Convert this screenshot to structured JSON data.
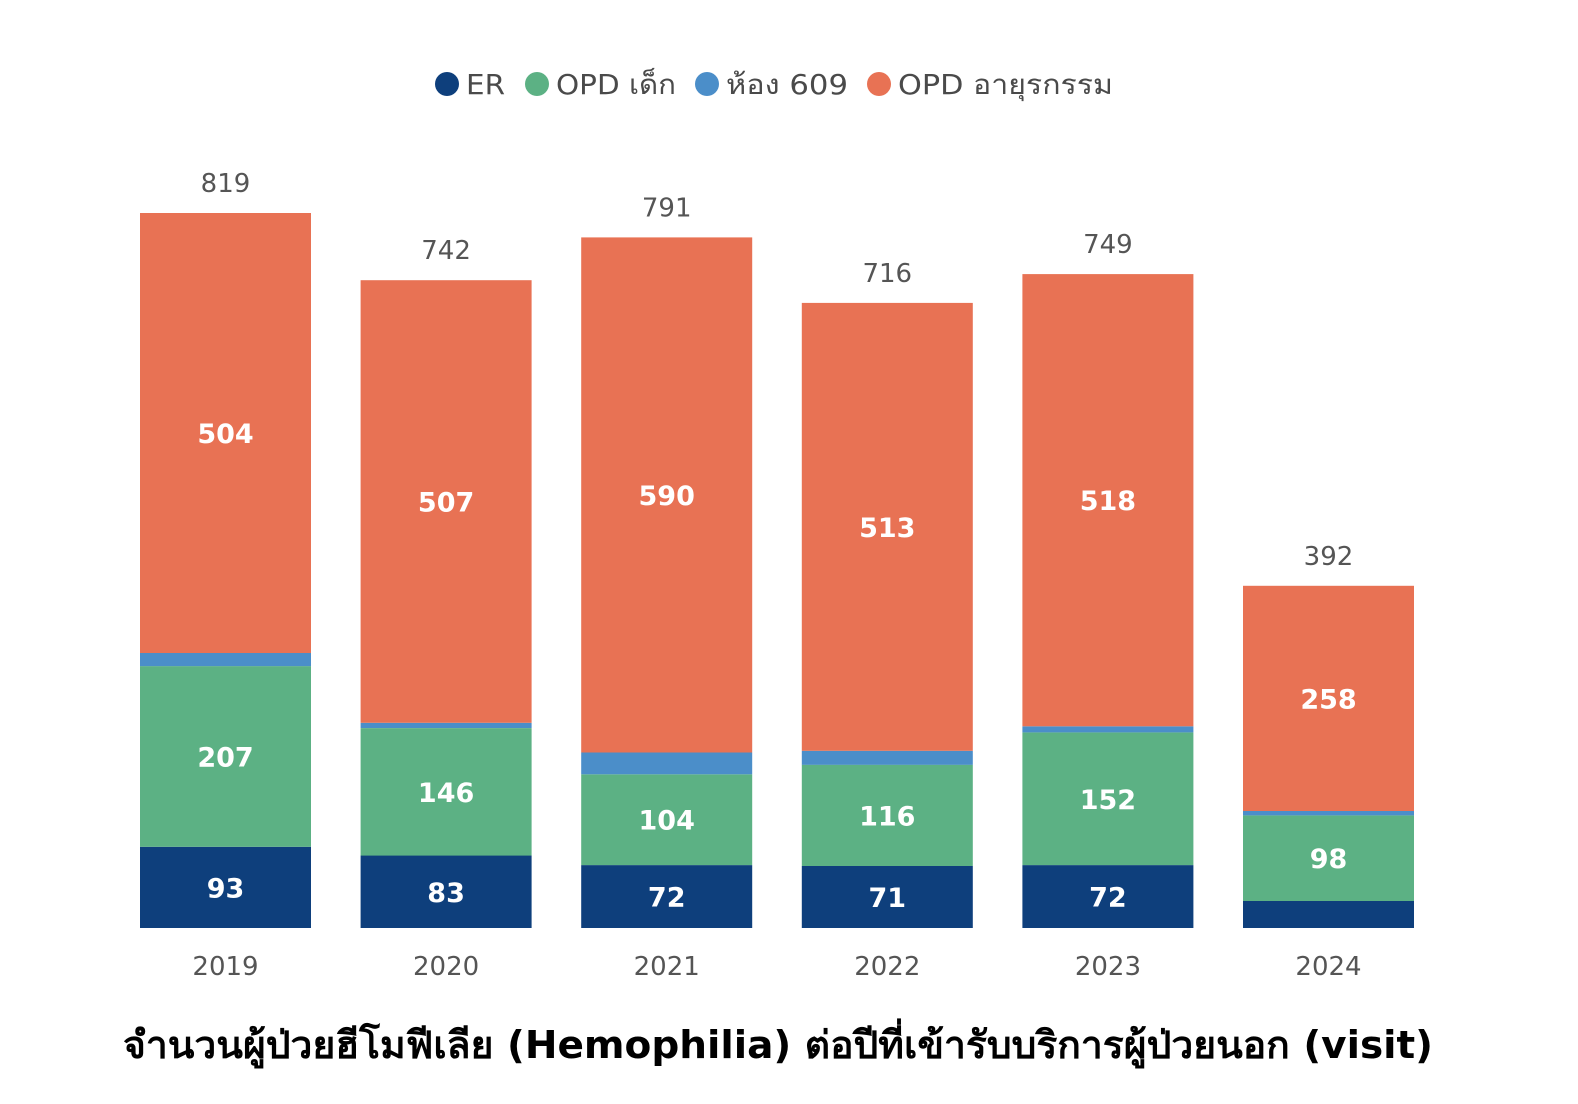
{
  "chart_data": {
    "type": "bar",
    "stacked": true,
    "legend_position": "top",
    "grid": false,
    "title": "จำนวนผู้ป่วยฮีโมฟีเลีย (Hemophilia) ต่อปีที่เข้ารับบริการผู้ป่วยนอก (visit)",
    "categories": [
      "2019",
      "2020",
      "2021",
      "2022",
      "2023",
      "2024"
    ],
    "series": [
      {
        "name": "ER",
        "color": "#0e3f7c",
        "values": [
          93,
          83,
          72,
          71,
          72,
          31
        ],
        "labels": [
          "93",
          "83",
          "72",
          "71",
          "72",
          null
        ]
      },
      {
        "name": "OPD เด็ก",
        "color": "#5cb184",
        "values": [
          207,
          146,
          104,
          116,
          152,
          98
        ],
        "labels": [
          "207",
          "146",
          "104",
          "116",
          "152",
          "98"
        ]
      },
      {
        "name": "ห้อง 609",
        "color": "#4b8ec9",
        "values": [
          15,
          6,
          25,
          16,
          7,
          5
        ],
        "labels": [
          null,
          null,
          null,
          null,
          null,
          null
        ]
      },
      {
        "name": "OPD อายุรกรรม",
        "color": "#e87254",
        "values": [
          504,
          507,
          590,
          513,
          518,
          258
        ],
        "labels": [
          "504",
          "507",
          "590",
          "513",
          "518",
          "258"
        ]
      }
    ],
    "totals": [
      819,
      742,
      791,
      716,
      749,
      392
    ]
  }
}
